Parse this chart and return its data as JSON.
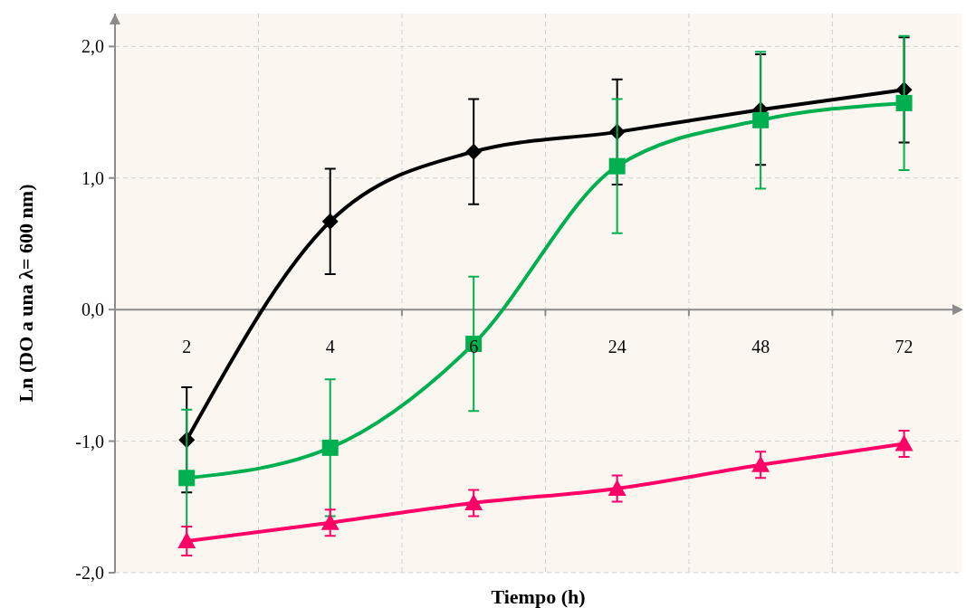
{
  "chart_data": {
    "type": "line",
    "xlabel": "Tiempo (h)",
    "ylabel": "Ln (DO a una λ= 600 nm)",
    "categories": [
      "2",
      "4",
      "6",
      "24",
      "48",
      "72"
    ],
    "ylim": [
      -2,
      2.25
    ],
    "yticks": [
      {
        "value": -2,
        "label": "-2,0"
      },
      {
        "value": -1,
        "label": "-1,0"
      },
      {
        "value": 0,
        "label": "0,0"
      },
      {
        "value": 1,
        "label": "1,0"
      },
      {
        "value": 2,
        "label": "2,0"
      }
    ],
    "grid": true,
    "line_style": "solid",
    "series": [
      {
        "color": "#000000",
        "marker": "diamond",
        "values": [
          -0.99,
          0.67,
          1.2,
          1.35,
          1.52,
          1.67
        ],
        "errors": [
          0.4,
          0.4,
          0.4,
          0.4,
          0.42,
          0.4
        ]
      },
      {
        "color": "#00b050",
        "marker": "square",
        "values": [
          -1.28,
          -1.05,
          -0.26,
          1.09,
          1.44,
          1.57
        ],
        "errors": [
          0.52,
          0.52,
          0.51,
          0.51,
          0.52,
          0.51
        ]
      },
      {
        "color": "#ff0066",
        "marker": "triangle",
        "values": [
          -1.76,
          -1.62,
          -1.47,
          -1.36,
          -1.18,
          -1.02
        ],
        "errors": [
          0.11,
          0.1,
          0.1,
          0.1,
          0.1,
          0.1
        ]
      }
    ]
  }
}
